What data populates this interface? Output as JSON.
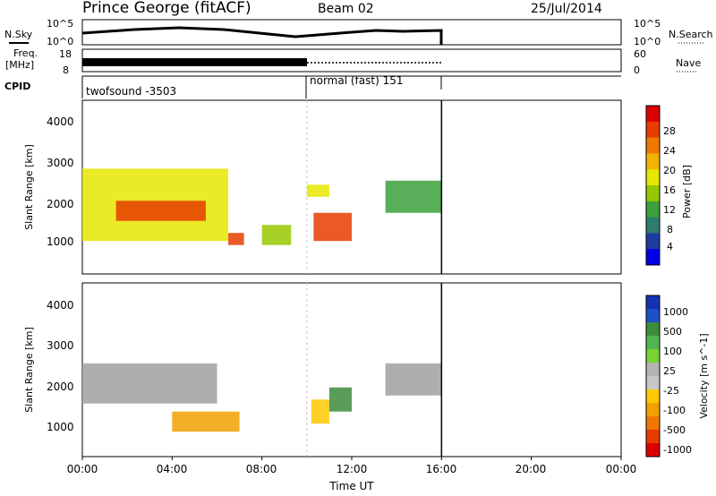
{
  "header": {
    "station": "Prince George (fitACF)",
    "beam": "Beam 02",
    "date": "25/Jul/2014"
  },
  "noise_panel": {
    "left_label": "N.Sky",
    "right_label": "N.Search",
    "y_ticks": [
      "10^5",
      "10^0"
    ]
  },
  "freq_panel": {
    "left_label_1": "Freq.",
    "left_label_2": "[MHz]",
    "left_ticks": [
      "18",
      "8"
    ],
    "right_ticks": [
      "60",
      "0"
    ],
    "right_label": "Nave"
  },
  "cpid": {
    "label": "CPID",
    "segments": [
      {
        "name": "twofsound -3503",
        "start_hour": 0,
        "end_hour": 10
      },
      {
        "name": "normal (fast) 151",
        "start_hour": 10,
        "end_hour": 16
      }
    ]
  },
  "power_panel": {
    "ylabel": "Slant Range [km]",
    "y_ticks": [
      "4000",
      "3000",
      "2000",
      "1000"
    ],
    "colorbar_label": "Power [dB]",
    "colorbar_ticks": [
      "28",
      "24",
      "20",
      "16",
      "12",
      "8",
      "4"
    ],
    "colors": [
      "#dc0000",
      "#e63c00",
      "#f07800",
      "#f0b400",
      "#e6e600",
      "#96c800",
      "#3ca03c",
      "#2e7d6e",
      "#1e3ca0",
      "#0000e6"
    ]
  },
  "velocity_panel": {
    "ylabel": "Slant Range [km]",
    "y_ticks": [
      "4000",
      "3000",
      "2000",
      "1000"
    ],
    "colorbar_label": "Velocity [m s^-1]",
    "colorbar_ticks": [
      "1000",
      "500",
      "100",
      "25",
      "-25",
      "-100",
      "-500",
      "-1000"
    ],
    "colors": [
      "#1432b4",
      "#1e50c8",
      "#3c8c3c",
      "#50b450",
      "#78d232",
      "#b4b4b4",
      "#c8c8c8",
      "#ffc800",
      "#f0a000",
      "#f07800",
      "#e63c00",
      "#dc0000"
    ],
    "ground_scatter_color": "#a0a0a0"
  },
  "time_axis": {
    "label": "Time UT",
    "ticks": [
      "00:00",
      "04:00",
      "08:00",
      "12:00",
      "16:00",
      "20:00",
      "00:00"
    ]
  },
  "chart_data": {
    "type": "heatmap",
    "x_axis": {
      "label": "Time UT",
      "range_hours": [
        0,
        24
      ],
      "data_end_hour": 16
    },
    "y_axis": {
      "label": "Slant Range [km]",
      "range_km": [
        180,
        4500
      ]
    },
    "power_db_range": [
      0,
      30
    ],
    "velocity_range": [
      -1000,
      1000
    ],
    "power_regions": [
      {
        "t0": 0.0,
        "t1": 6.5,
        "r0": 1000,
        "r1": 2800,
        "power_db": 18
      },
      {
        "t0": 1.5,
        "t1": 5.5,
        "r0": 1500,
        "r1": 2000,
        "power_db": 26
      },
      {
        "t0": 6.5,
        "t1": 7.2,
        "r0": 900,
        "r1": 1200,
        "power_db": 28
      },
      {
        "t0": 8.0,
        "t1": 9.3,
        "r0": 900,
        "r1": 1400,
        "power_db": 14
      },
      {
        "t0": 10.3,
        "t1": 12.0,
        "r0": 1000,
        "r1": 1700,
        "power_db": 27
      },
      {
        "t0": 10.0,
        "t1": 11.0,
        "r0": 2100,
        "r1": 2400,
        "power_db": 16
      },
      {
        "t0": 13.5,
        "t1": 16.0,
        "r0": 1700,
        "r1": 2500,
        "power_db": 10
      }
    ],
    "velocity_regions": [
      {
        "t0": 0.0,
        "t1": 6.0,
        "r0": 1500,
        "r1": 2500,
        "velocity": 0,
        "ground_scatter": true
      },
      {
        "t0": 4.0,
        "t1": 7.0,
        "r0": 800,
        "r1": 1300,
        "velocity": -400
      },
      {
        "t0": 10.2,
        "t1": 11.0,
        "r0": 1000,
        "r1": 1600,
        "velocity": -300
      },
      {
        "t0": 11.0,
        "t1": 12.0,
        "r0": 1300,
        "r1": 1900,
        "velocity": 700
      },
      {
        "t0": 13.5,
        "t1": 16.0,
        "r0": 1700,
        "r1": 2500,
        "velocity": 0,
        "ground_scatter": true
      }
    ]
  }
}
